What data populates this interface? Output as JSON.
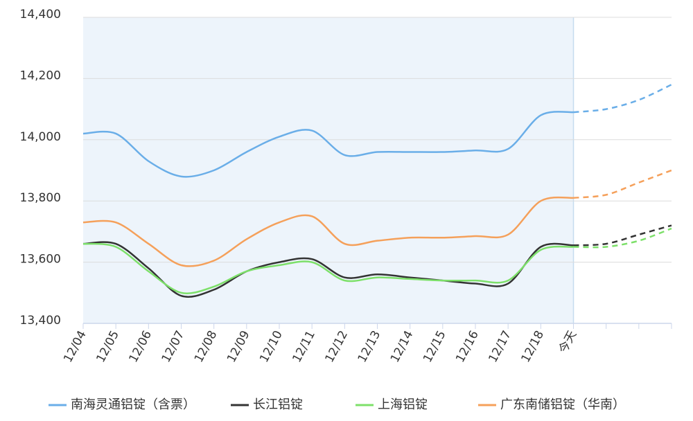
{
  "chart_data": {
    "type": "line",
    "categories": [
      "12/04",
      "12/05",
      "12/06",
      "12/07",
      "12/08",
      "12/09",
      "12/10",
      "12/11",
      "12/12",
      "12/13",
      "12/14",
      "12/15",
      "12/16",
      "12/17",
      "12/18",
      "今天",
      null,
      null,
      null
    ],
    "forecast_start_index": 15,
    "ylim": [
      13400,
      14400
    ],
    "yticks": [
      {
        "value": 13400,
        "label": "13,400"
      },
      {
        "value": 13600,
        "label": "13,600"
      },
      {
        "value": 13800,
        "label": "13,800"
      },
      {
        "value": 14000,
        "label": "14,000"
      },
      {
        "value": 14200,
        "label": "14,200"
      },
      {
        "value": 14400,
        "label": "14,400"
      }
    ],
    "grid": true,
    "legend": "bottom",
    "series": [
      {
        "name": "南海灵通铝锭（含票）",
        "color": "#6aaee8",
        "values": [
          14020,
          14020,
          13930,
          13880,
          13900,
          13960,
          14010,
          14030,
          13950,
          13960,
          13960,
          13960,
          13965,
          13970,
          14080,
          14090,
          14100,
          14130,
          14180
        ]
      },
      {
        "name": "长江铝锭",
        "color": "#333333",
        "values": [
          13660,
          13660,
          13580,
          13490,
          13510,
          13570,
          13600,
          13610,
          13550,
          13560,
          13550,
          13540,
          13530,
          13530,
          13650,
          13655,
          13660,
          13690,
          13720
        ]
      },
      {
        "name": "上海铝锭",
        "color": "#7de06a",
        "values": [
          13660,
          13650,
          13570,
          13500,
          13520,
          13570,
          13590,
          13600,
          13540,
          13550,
          13545,
          13540,
          13540,
          13540,
          13640,
          13650,
          13650,
          13670,
          13710
        ]
      },
      {
        "name": "广东南储铝锭（华南）",
        "color": "#f5a05a",
        "values": [
          13730,
          13730,
          13660,
          13590,
          13605,
          13675,
          13730,
          13750,
          13660,
          13670,
          13680,
          13680,
          13685,
          13690,
          13800,
          13810,
          13820,
          13860,
          13900
        ]
      }
    ]
  }
}
